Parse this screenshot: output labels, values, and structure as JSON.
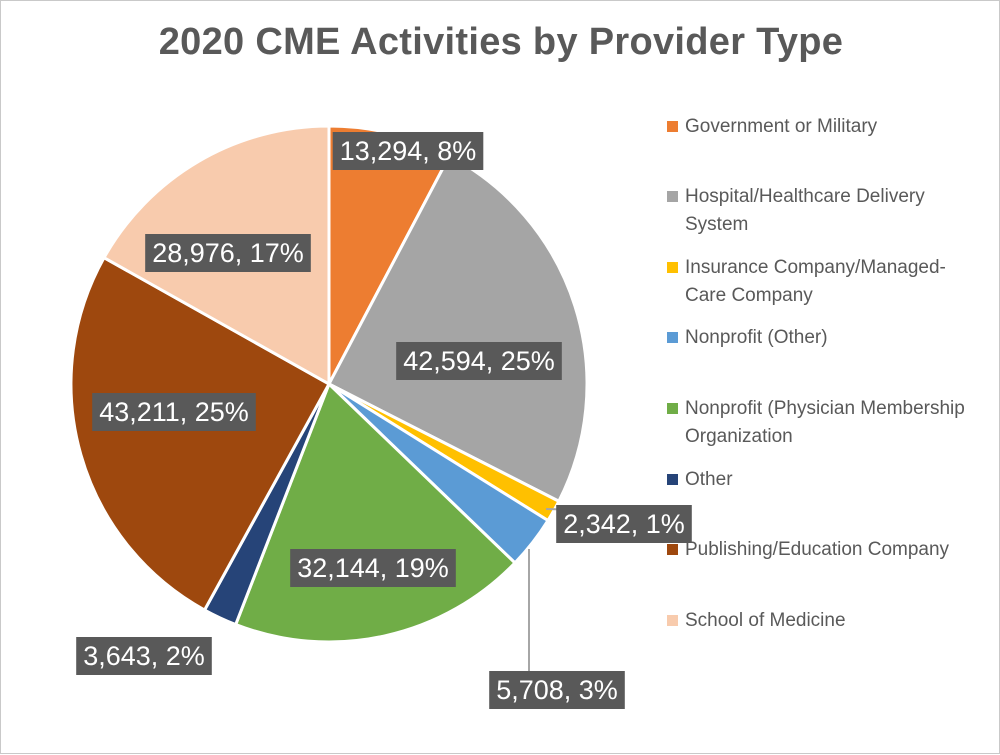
{
  "chart_data": {
    "type": "pie",
    "title": "2020 CME Activities by Provider Type",
    "slices": [
      {
        "label": "Government or Military",
        "value": 13294,
        "percent": "8%",
        "data_label": "13,294, 8%",
        "color": "#ED7D31"
      },
      {
        "label": "Hospital/Healthcare Delivery System",
        "value": 42594,
        "percent": "25%",
        "data_label": "42,594, 25%",
        "color": "#A5A5A5"
      },
      {
        "label": "Insurance Company/Managed-Care Company",
        "value": 2342,
        "percent": "1%",
        "data_label": "2,342, 1%",
        "color": "#FFC000"
      },
      {
        "label": "Nonprofit (Other)",
        "value": 5708,
        "percent": "3%",
        "data_label": "5,708, 3%",
        "color": "#5B9BD5"
      },
      {
        "label": "Nonprofit (Physician Membership Organization",
        "value": 32144,
        "percent": "19%",
        "data_label": "32,144, 19%",
        "color": "#70AD47"
      },
      {
        "label": "Other",
        "value": 3643,
        "percent": "2%",
        "data_label": "3,643, 2%",
        "color": "#264478"
      },
      {
        "label": "Publishing/Education Company",
        "value": 43211,
        "percent": "25%",
        "data_label": "43,211, 25%",
        "color": "#9E480E"
      },
      {
        "label": "School of Medicine",
        "value": 28976,
        "percent": "17%",
        "data_label": "28,976, 17%",
        "color": "#F8CBAD"
      }
    ],
    "start_angle": "12 o'clock",
    "direction": "clockwise",
    "legend_position": "right",
    "label_box_color": "#595959"
  },
  "legend": [
    {
      "label": "Government or Military",
      "color": "#ED7D31"
    },
    {
      "label": "Hospital/Healthcare Delivery System",
      "color": "#A5A5A5"
    },
    {
      "label": "Insurance Company/Managed-Care Company",
      "color": "#FFC000"
    },
    {
      "label": "Nonprofit (Other)",
      "color": "#5B9BD5"
    },
    {
      "label": "Nonprofit (Physician Membership Organization",
      "color": "#70AD47"
    },
    {
      "label": "Other",
      "color": "#264478"
    },
    {
      "label": "Publishing/Education Company",
      "color": "#9E480E"
    },
    {
      "label": "School of Medicine",
      "color": "#F8CBAD"
    }
  ]
}
